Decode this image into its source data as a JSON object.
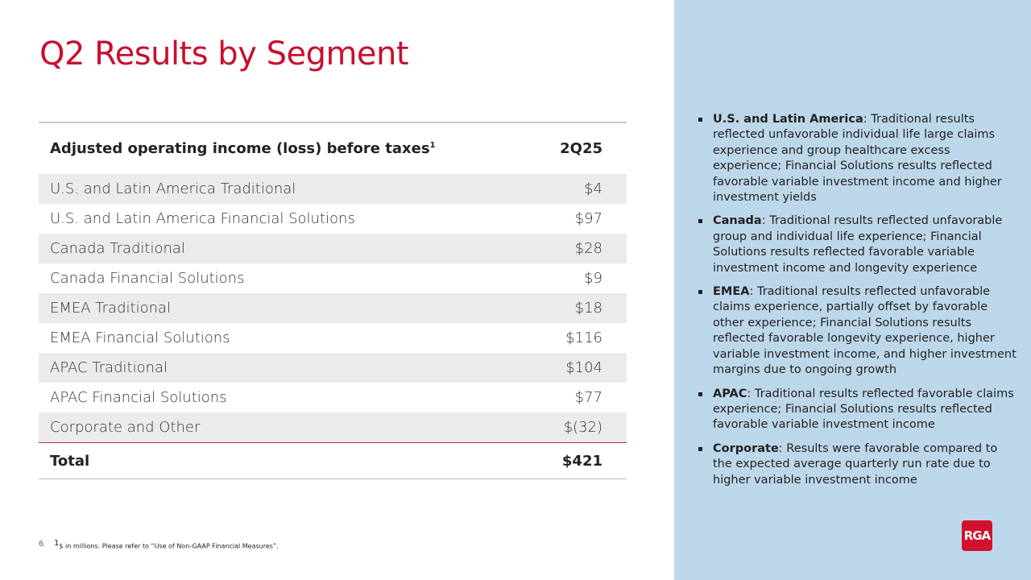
{
  "header": {
    "title": "Q2 Results by Segment"
  },
  "table": {
    "columns": [
      "Adjusted operating income (loss) before taxes",
      "2Q25"
    ],
    "column_note": "1",
    "rows": [
      [
        "U.S. and Latin America Traditional",
        "$4"
      ],
      [
        "U.S. and Latin America Financial Solutions",
        "$97"
      ],
      [
        "Canada Traditional",
        "$28"
      ],
      [
        "Canada Financial Solutions",
        "$9"
      ],
      [
        "EMEA Traditional",
        "$18"
      ],
      [
        "EMEA Financial Solutions",
        "$116"
      ],
      [
        "APAC Traditional",
        "$104"
      ],
      [
        "APAC Financial Solutions",
        "$77"
      ],
      [
        "Corporate and Other",
        "$(32)"
      ]
    ],
    "total": [
      "Total",
      "$421"
    ]
  },
  "bullets": [
    {
      "label": "U.S. and Latin America",
      "text": ": Traditional results reflected unfavorable individual life large claims experience and group healthcare excess experience; Financial Solutions results reflected favorable variable investment income and higher investment yields"
    },
    {
      "label": "Canada",
      "text": ": Traditional results reflected unfavorable group and individual life experience; Financial Solutions results reflected favorable variable investment income and longevity experience"
    },
    {
      "label": "EMEA",
      "text": ": Traditional results reflected unfavorable claims experience, partially offset by favorable other experience; Financial Solutions results reflected favorable longevity experience, higher variable investment income, and higher investment margins due to ongoing growth"
    },
    {
      "label": "APAC",
      "text": ": Traditional results reflected favorable claims experience; Financial Solutions results reflected favorable variable investment income"
    },
    {
      "label": "Corporate",
      "text": ": Results were favorable compared to the expected average quarterly run rate due to higher variable investment income"
    }
  ],
  "footer": {
    "page": "6",
    "note_marker": "1",
    "note": "$ in millions. Please refer to “Use of Non-GAAP Financial Measures”."
  },
  "logo": "RGA"
}
